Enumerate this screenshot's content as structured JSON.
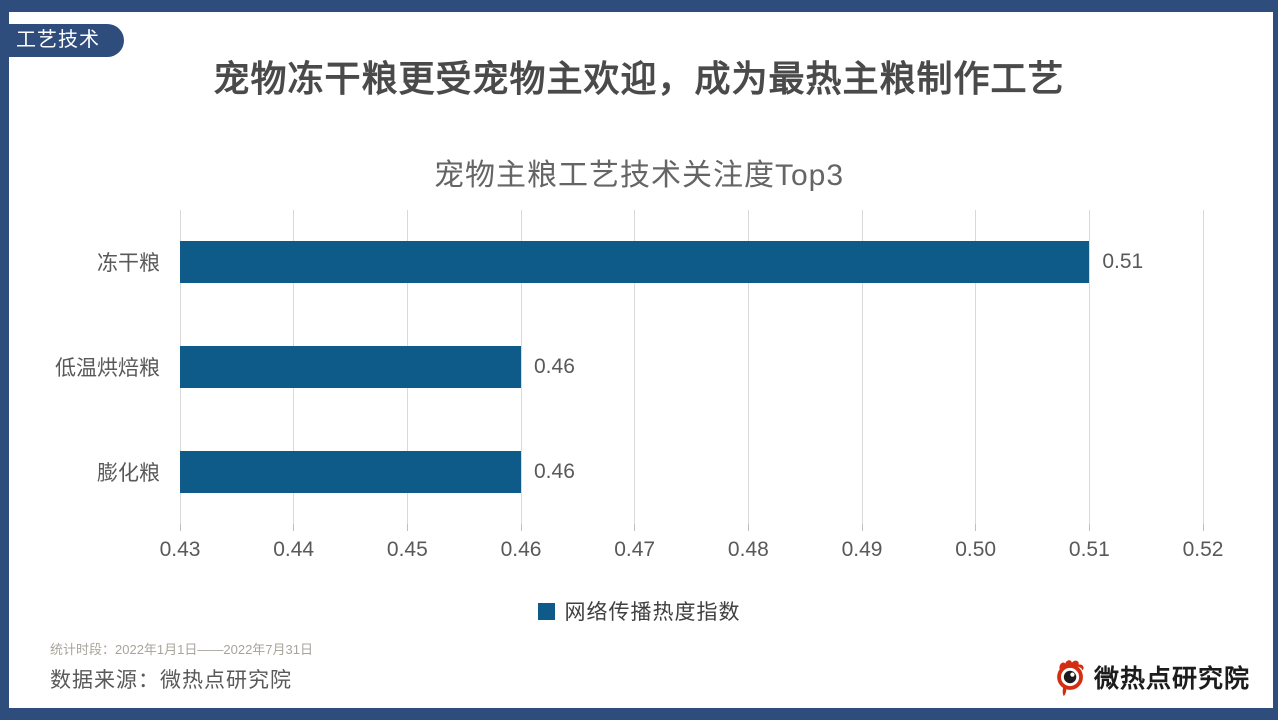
{
  "badge": {
    "label": "工艺技术"
  },
  "header": {
    "title": "宠物冻干粮更受宠物主欢迎，成为最热主粮制作工艺"
  },
  "chart_data": {
    "type": "bar",
    "orientation": "horizontal",
    "title": "宠物主粮工艺技术关注度Top3",
    "categories": [
      "冻干粮",
      "低温烘焙粮",
      "膨化粮"
    ],
    "values": [
      0.51,
      0.46,
      0.46
    ],
    "value_labels": [
      "0.51",
      "0.46",
      "0.46"
    ],
    "series_name": "网络传播热度指数",
    "xlim": [
      0.43,
      0.52
    ],
    "x_ticks": [
      "0.43",
      "0.44",
      "0.45",
      "0.46",
      "0.47",
      "0.48",
      "0.49",
      "0.50",
      "0.51",
      "0.52"
    ],
    "bar_color": "#0E5A88",
    "grid": true,
    "legend_position": "bottom"
  },
  "legend": {
    "label": "网络传播热度指数",
    "swatch_color": "#0E5A88"
  },
  "footer": {
    "period": "统计时段：2022年1月1日——2022年7月31日",
    "source": "数据来源：微热点研究院",
    "logo_text": "微热点研究院"
  },
  "colors": {
    "frame": "#2E4C7C",
    "bar": "#0E5A88"
  }
}
